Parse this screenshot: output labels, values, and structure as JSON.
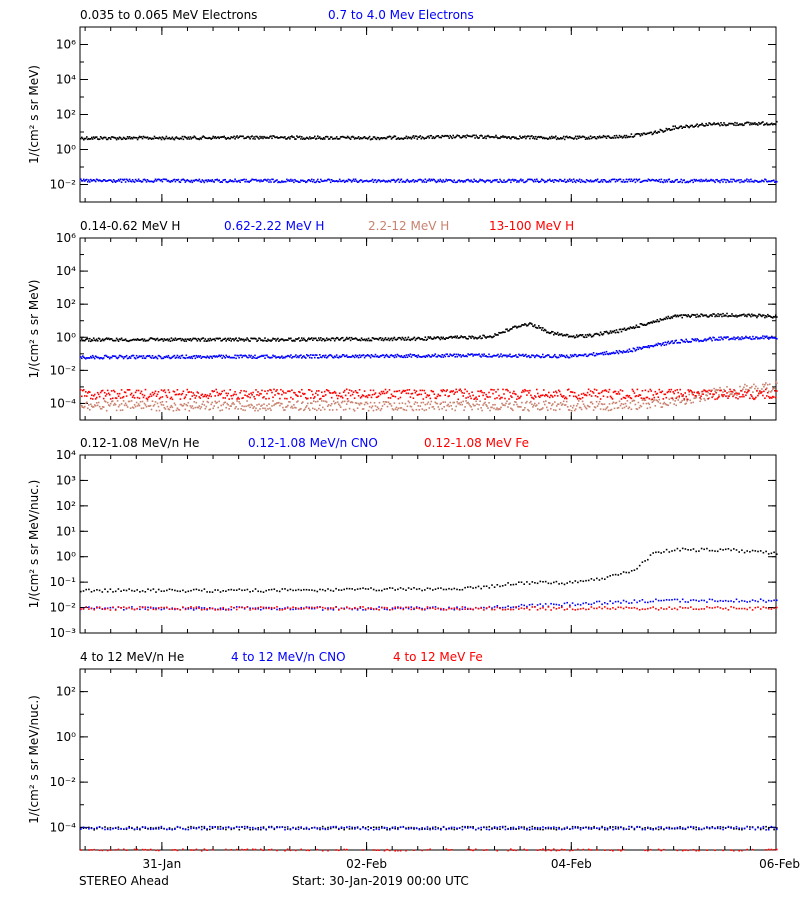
{
  "footer": {
    "left": "STEREO Ahead",
    "center": "Start: 30-Jan-2019 00:00 UTC"
  },
  "x_axis": {
    "ticks": [
      "31-Jan",
      "02-Feb",
      "04-Feb",
      "06-Feb"
    ],
    "tick_days": [
      1,
      3,
      5,
      7
    ],
    "xlim_days": [
      0.2,
      7.0
    ]
  },
  "colors": {
    "black": "#000000",
    "blue": "#0000ff",
    "red": "#ff0000",
    "salmon": "#c8826e"
  },
  "chart_data": [
    {
      "type": "scatter",
      "title": "",
      "xlabel": "",
      "ylabel": "1/(cm² s sr MeV)",
      "yscale": "log",
      "ylim": [
        0.001,
        10000000
      ],
      "yticks": [
        "10⁶",
        "10⁴",
        "10²",
        "10⁰",
        "10⁻²"
      ],
      "ytick_values": [
        1000000,
        10000,
        100,
        1,
        0.01
      ],
      "legend": [
        {
          "name": "0.035 to 0.065 MeV Electrons",
          "color": "#000000"
        },
        {
          "name": "0.7 to 4.0 Mev Electrons",
          "color": "#0000ff"
        }
      ],
      "series": [
        {
          "name": "0.035 to 0.065 MeV Electrons",
          "color": "#000000",
          "x": [
            0.2,
            1.0,
            2.0,
            3.0,
            4.0,
            5.0,
            5.5,
            5.8,
            6.0,
            6.3,
            6.6,
            7.0
          ],
          "y": [
            5,
            5,
            5.5,
            5,
            6,
            5,
            6,
            10,
            20,
            30,
            32,
            35
          ]
        },
        {
          "name": "0.7 to 4.0 Mev Electrons",
          "color": "#0000ff",
          "x": [
            0.2,
            2.0,
            4.0,
            6.0,
            7.0
          ],
          "y": [
            0.018,
            0.018,
            0.018,
            0.018,
            0.018
          ]
        }
      ]
    },
    {
      "type": "scatter",
      "title": "",
      "xlabel": "",
      "ylabel": "1/(cm² s sr MeV)",
      "yscale": "log",
      "ylim": [
        1e-05,
        1000000
      ],
      "yticks": [
        "10⁶",
        "10⁴",
        "10²",
        "10⁰",
        "10⁻²",
        "10⁻⁴"
      ],
      "ytick_values": [
        1000000,
        10000,
        100,
        1,
        0.01,
        0.0001
      ],
      "legend": [
        {
          "name": "0.14-0.62 MeV H",
          "color": "#000000"
        },
        {
          "name": "0.62-2.22 MeV H",
          "color": "#0000ff"
        },
        {
          "name": "2.2-12 MeV H",
          "color": "#c8826e"
        },
        {
          "name": "13-100 MeV H",
          "color": "#ff0000"
        }
      ],
      "series": [
        {
          "name": "0.14-0.62 MeV H",
          "color": "#000000",
          "x": [
            0.2,
            2.0,
            3.5,
            4.2,
            4.5,
            4.6,
            4.8,
            5.0,
            5.2,
            5.5,
            5.8,
            6.0,
            6.5,
            7.0
          ],
          "y": [
            0.8,
            0.8,
            0.9,
            1.2,
            6,
            7,
            2,
            1.2,
            1.5,
            3,
            10,
            20,
            25,
            20
          ]
        },
        {
          "name": "0.62-2.22 MeV H",
          "color": "#0000ff",
          "x": [
            0.2,
            2.0,
            4.0,
            5.0,
            5.5,
            6.0,
            6.5,
            7.0
          ],
          "y": [
            0.07,
            0.075,
            0.09,
            0.08,
            0.15,
            0.6,
            1,
            1.1
          ]
        },
        {
          "name": "2.2-12 MeV H",
          "color": "#c8826e",
          "x": [
            0.2,
            2.0,
            4.0,
            5.5,
            6.0,
            6.5,
            7.0
          ],
          "y": [
            8e-05,
            8e-05,
            8e-05,
            8e-05,
            0.00015,
            0.0006,
            0.0012
          ]
        },
        {
          "name": "13-100 MeV H",
          "color": "#ff0000",
          "x": [
            0.2,
            2.0,
            4.0,
            6.0,
            7.0
          ],
          "y": [
            0.0004,
            0.0004,
            0.0004,
            0.0004,
            0.0004
          ]
        }
      ]
    },
    {
      "type": "scatter",
      "title": "",
      "xlabel": "",
      "ylabel": "1/(cm² s sr MeV/nuc.)",
      "yscale": "log",
      "ylim": [
        0.001,
        10000
      ],
      "yticks": [
        "10⁴",
        "10³",
        "10²",
        "10¹",
        "10⁰",
        "10⁻¹",
        "10⁻²",
        "10⁻³"
      ],
      "ytick_values": [
        10000,
        1000,
        100,
        10,
        1,
        0.1,
        0.01,
        0.001
      ],
      "legend": [
        {
          "name": "0.12-1.08 MeV/n He",
          "color": "#000000"
        },
        {
          "name": "0.12-1.08 MeV/n CNO",
          "color": "#0000ff"
        },
        {
          "name": "0.12-1.08 MeV Fe",
          "color": "#ff0000"
        }
      ],
      "series": [
        {
          "name": "0.12-1.08 MeV/n He",
          "color": "#000000",
          "x": [
            0.2,
            2.0,
            4.0,
            4.5,
            5.0,
            5.3,
            5.6,
            5.8,
            6.0,
            6.5,
            7.0
          ],
          "y": [
            0.05,
            0.05,
            0.06,
            0.1,
            0.1,
            0.15,
            0.3,
            1.5,
            2,
            2,
            1.5
          ]
        },
        {
          "name": "0.12-1.08 MeV/n CNO",
          "color": "#0000ff",
          "x": [
            0.2,
            2.0,
            4.0,
            5.8,
            6.0,
            7.0
          ],
          "y": [
            0.01,
            0.01,
            0.01,
            0.02,
            0.02,
            0.02
          ]
        },
        {
          "name": "0.12-1.08 MeV Fe",
          "color": "#ff0000",
          "x": [
            0.2,
            2.0,
            4.0,
            6.0,
            7.0
          ],
          "y": [
            0.01,
            0.01,
            0.01,
            0.01,
            0.01
          ]
        }
      ]
    },
    {
      "type": "scatter",
      "title": "",
      "xlabel": "",
      "ylabel": "1/(cm² s sr MeV/nuc.)",
      "yscale": "log",
      "ylim": [
        1e-05,
        1000
      ],
      "yticks": [
        "10²",
        "10⁰",
        "10⁻²",
        "10⁻⁴"
      ],
      "ytick_values": [
        100,
        1,
        0.01,
        0.0001
      ],
      "legend": [
        {
          "name": "4 to 12 MeV/n He",
          "color": "#000000"
        },
        {
          "name": "4 to 12 MeV/n CNO",
          "color": "#0000ff"
        },
        {
          "name": "4 to 12 MeV Fe",
          "color": "#ff0000"
        }
      ],
      "series": [
        {
          "name": "4 to 12 MeV/n He",
          "color": "#000000",
          "x": [
            0.2,
            7.0
          ],
          "y": [
            0.0001,
            0.0001
          ]
        },
        {
          "name": "4 to 12 MeV/n CNO",
          "color": "#0000ff",
          "x": [
            0.2,
            7.0
          ],
          "y": [
            0.0001,
            0.0001
          ]
        },
        {
          "name": "4 to 12 MeV Fe",
          "color": "#ff0000",
          "x": [
            0.2,
            7.0
          ],
          "y": [
            1e-05,
            1e-05
          ]
        }
      ]
    }
  ]
}
